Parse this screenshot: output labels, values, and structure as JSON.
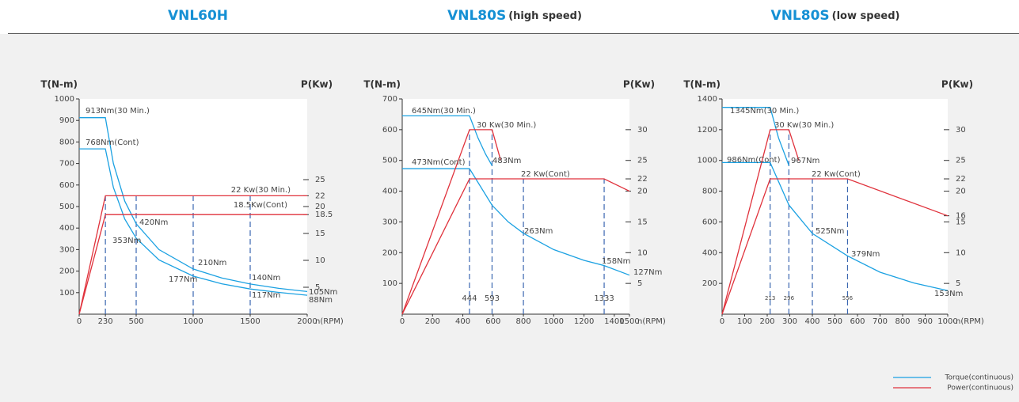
{
  "chart_data": [
    {
      "type": "line",
      "title": "VNL60H",
      "y_label": "T(N-m)",
      "y2_label": "P(Kw)",
      "x_label": "n(RPM)",
      "xlim": [
        0,
        2000
      ],
      "xticks": [
        0,
        230,
        500,
        1000,
        1500,
        2000
      ],
      "ylim": [
        0,
        1000
      ],
      "yticks": [
        100,
        200,
        300,
        400,
        500,
        600,
        700,
        800,
        900,
        1000
      ],
      "y2lim": [
        0,
        40
      ],
      "y2ticks": [
        5,
        10,
        15,
        18.5,
        20,
        22,
        25
      ],
      "vlines": [
        230,
        500,
        1000,
        1500
      ],
      "series": [
        {
          "color": "#1ba1e2",
          "x": [
            0,
            230,
            300,
            400,
            500,
            700,
            1000,
            1250,
            1500,
            1750,
            2000
          ],
          "values": [
            913,
            913,
            700,
            525,
            420,
            300,
            210,
            168,
            140,
            120,
            105
          ]
        },
        {
          "color": "#1ba1e2",
          "x": [
            0,
            230,
            300,
            400,
            500,
            700,
            1000,
            1250,
            1500,
            1750,
            2000
          ],
          "values": [
            768,
            768,
            589,
            442,
            353,
            252,
            177,
            141,
            117,
            101,
            88
          ]
        },
        {
          "color": "#e0323c",
          "axis": "y2",
          "x": [
            0,
            230,
            2000
          ],
          "values": [
            0,
            22,
            22
          ]
        },
        {
          "color": "#e0323c",
          "axis": "y2",
          "x": [
            0,
            230,
            2000
          ],
          "values": [
            0,
            18.5,
            18.5
          ]
        }
      ],
      "annotations": [
        "913Nm(30 Min.)",
        "768Nm(Cont)",
        "22 Kw(30 Min.)",
        "18.5Kw(Cont)",
        "420Nm",
        "353Nm",
        "210Nm",
        "177Nm",
        "140Nm",
        "117Nm",
        "105Nm",
        "88Nm"
      ]
    },
    {
      "type": "line",
      "title": "VNL80S",
      "subtitle": "(high speed)",
      "y_label": "T(N-m)",
      "y2_label": "P(Kw)",
      "x_label": "n(RPM)",
      "xlim": [
        0,
        1500
      ],
      "xticks": [
        0,
        200,
        400,
        600,
        800,
        1000,
        1200,
        1400,
        1500
      ],
      "ylim": [
        0,
        700
      ],
      "yticks": [
        100,
        200,
        300,
        400,
        500,
        600,
        700
      ],
      "y2lim": [
        0,
        35
      ],
      "y2ticks": [
        5,
        10,
        15,
        20,
        22,
        25,
        30
      ],
      "vlines": [
        444,
        593,
        800,
        1333
      ],
      "vline_labels": [
        "444",
        "593",
        null,
        "1333"
      ],
      "series": [
        {
          "color": "#1ba1e2",
          "x": [
            0,
            444,
            500,
            550,
            593
          ],
          "values": [
            645,
            645,
            573,
            521,
            483
          ]
        },
        {
          "color": "#1ba1e2",
          "x": [
            0,
            444,
            593,
            700,
            800,
            1000,
            1200,
            1333,
            1500
          ],
          "values": [
            473,
            473,
            354,
            300,
            263,
            210,
            175,
            158,
            127
          ]
        },
        {
          "color": "#e0323c",
          "axis": "y2",
          "x": [
            0,
            444,
            593,
            650
          ],
          "values": [
            0,
            30,
            30,
            25
          ]
        },
        {
          "color": "#e0323c",
          "axis": "y2",
          "x": [
            0,
            444,
            1333,
            1500
          ],
          "values": [
            0,
            22,
            22,
            20
          ]
        }
      ],
      "annotations": [
        "645Nm(30 Min.)",
        "30 Kw(30 Min.)",
        "473Nm(Cont)",
        "483Nm",
        "22 Kw(Cont)",
        "263Nm",
        "158Nm",
        "127Nm"
      ]
    },
    {
      "type": "line",
      "title": "VNL80S",
      "subtitle": "(low speed)",
      "y_label": "T(N-m)",
      "y2_label": "P(Kw)",
      "x_label": "n(RPM)",
      "xlim": [
        0,
        1000
      ],
      "xticks": [
        0,
        100,
        200,
        300,
        400,
        500,
        600,
        700,
        800,
        900,
        1000
      ],
      "ylim": [
        0,
        1400
      ],
      "yticks": [
        200,
        400,
        600,
        800,
        1000,
        1200,
        1400
      ],
      "y2lim": [
        0,
        35
      ],
      "y2ticks": [
        5,
        10,
        15,
        16,
        20,
        22,
        25,
        30
      ],
      "vlines": [
        213,
        296,
        400,
        556
      ],
      "vline_labels": [
        "213",
        "296",
        null,
        "556"
      ],
      "series": [
        {
          "color": "#1ba1e2",
          "x": [
            0,
            213,
            250,
            296
          ],
          "values": [
            1345,
            1345,
            1146,
            967
          ]
        },
        {
          "color": "#1ba1e2",
          "x": [
            0,
            213,
            296,
            400,
            556,
            700,
            850,
            1000
          ],
          "values": [
            986,
            986,
            710,
            525,
            379,
            273,
            203,
            153
          ]
        },
        {
          "color": "#e0323c",
          "axis": "y2",
          "x": [
            0,
            213,
            296,
            340
          ],
          "values": [
            0,
            30,
            30,
            25
          ]
        },
        {
          "color": "#e0323c",
          "axis": "y2",
          "x": [
            0,
            213,
            556,
            1000
          ],
          "values": [
            0,
            22,
            22,
            16
          ]
        }
      ],
      "annotations": [
        "1345Nm(30 Min.)",
        "30 Kw(30 Min.)",
        "986Nm(Cont)",
        "967Nm",
        "22 Kw(Cont)",
        "525Nm",
        "379Nm",
        "153Nm"
      ]
    }
  ],
  "legend": [
    {
      "name": "Torque(continuous)",
      "color": "#1ba1e2"
    },
    {
      "name": "Power(continuous)",
      "color": "#e0323c"
    }
  ]
}
